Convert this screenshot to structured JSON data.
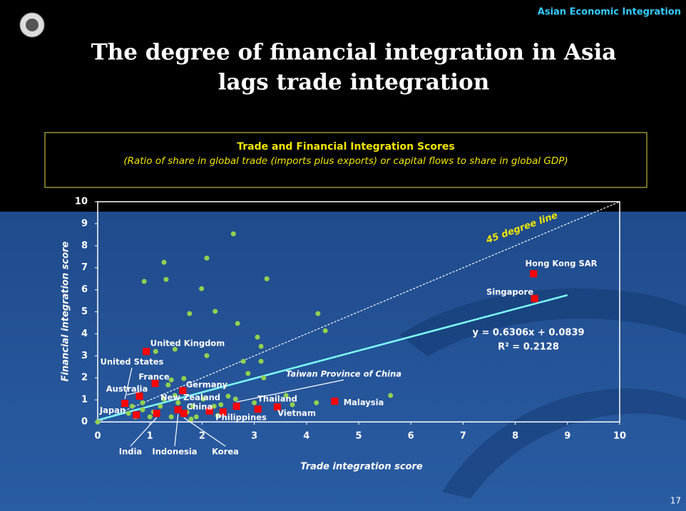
{
  "header": "Asian Economic Integration",
  "page_number": "17",
  "title_lines": [
    "The degree of financial integration in Asia",
    "lags trade integration"
  ],
  "chart_data": {
    "type": "scatter",
    "title": "Trade and Financial Integration Scores",
    "subtitle": "(Ratio of share in global trade (imports plus exports) or capital flows to share in global GDP)",
    "xlabel": "Trade integration score",
    "ylabel": "Financial integration score",
    "xlim": [
      0,
      10
    ],
    "ylim": [
      0,
      10
    ],
    "xticks": [
      0,
      1,
      2,
      3,
      4,
      5,
      6,
      7,
      8,
      9,
      10
    ],
    "yticks": [
      0,
      1,
      2,
      3,
      4,
      5,
      6,
      7,
      8,
      9,
      10
    ],
    "series": [
      {
        "color": "#92d050",
        "x": [
          1.27,
          2.09,
          2.6,
          0.89,
          1.31,
          1.99,
          3.24,
          1.76,
          2.25,
          4.22,
          2.68,
          4.36,
          3.06,
          3.13,
          1.11,
          1.48,
          2.09,
          2.79,
          3.13,
          2.88,
          3.18,
          1.65,
          1.41,
          1.35,
          5.61,
          3.61,
          4.19,
          2.5,
          2.64,
          3.0,
          3.73,
          0,
          0.66,
          0.86,
          1.0,
          1.2,
          1.41,
          1.54,
          1.82,
          1.89,
          2.02,
          2.23,
          2.36,
          1.27,
          0.86,
          0.72,
          1.48,
          1.79,
          1.07,
          1.71,
          2.3,
          0.59
        ],
        "values": [
          7.25,
          7.44,
          8.54,
          6.38,
          6.47,
          6.05,
          6.5,
          4.92,
          5.02,
          4.92,
          4.47,
          4.14,
          3.85,
          3.43,
          3.2,
          3.3,
          3.01,
          2.75,
          2.75,
          2.2,
          2.0,
          1.97,
          1.91,
          1.68,
          1.2,
          1.2,
          0.87,
          1.17,
          1.04,
          0.87,
          0.78,
          0,
          0.71,
          0.55,
          0.23,
          0.71,
          0.23,
          0.87,
          0.71,
          0.23,
          1.04,
          0.71,
          0.78,
          1.04,
          0.87,
          0.23,
          1.2,
          0.13,
          0.45,
          0.45,
          0.29,
          0.39
        ]
      },
      {
        "color": "#ff0000",
        "labels": [
          "Hong Kong SAR",
          "Singapore",
          "United Kingdom",
          "United States",
          "France",
          "Germany",
          "Australia",
          "Japan",
          "India",
          "Indonesia",
          "New Zealand",
          "Korea",
          "China",
          "Taiwan Province of China",
          "Thailand",
          "Philippines",
          "Vietnam",
          "Malaysia"
        ],
        "x": [
          8.35,
          8.37,
          0.93,
          0.52,
          1.1,
          1.63,
          0.8,
          0.74,
          1.13,
          1.54,
          1.54,
          1.65,
          2.14,
          2.66,
          3.07,
          2.4,
          3.44,
          4.54
        ],
        "values": [
          6.73,
          5.6,
          3.2,
          0.84,
          1.75,
          1.42,
          1.17,
          0.32,
          0.39,
          0.55,
          0.55,
          0.39,
          0.49,
          0.71,
          0.58,
          0.45,
          0.68,
          0.94
        ]
      }
    ],
    "trendline": {
      "color": "#7fffff",
      "x": [
        0,
        9
      ],
      "y": [
        0.0839,
        5.7593
      ],
      "equation": "y = 0.6306x + 0.0839",
      "r2": "R² = 0.2128"
    },
    "reference_line": {
      "label": "45 degree line",
      "x": [
        0,
        10
      ],
      "y": [
        0,
        10
      ]
    }
  }
}
